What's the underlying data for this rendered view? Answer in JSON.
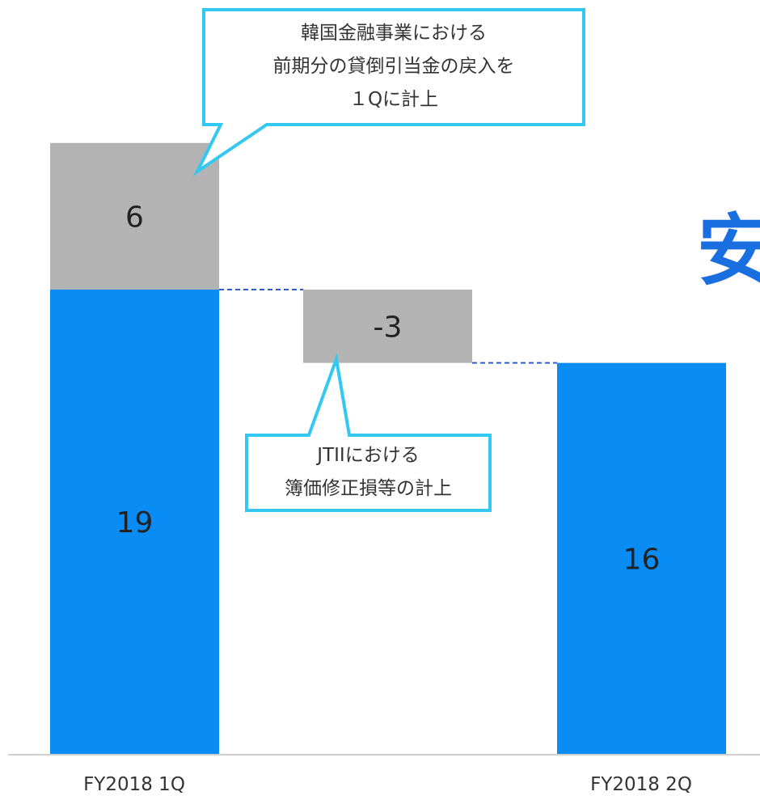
{
  "chart_data": {
    "type": "bar",
    "subtype": "waterfall",
    "categories": [
      "FY2018 1Q",
      "",
      "FY2018 2Q"
    ],
    "ylim": [
      0,
      26
    ],
    "grid": false,
    "legend": "none",
    "colors": {
      "base": "#0a8cf5",
      "delta": "#b3b3b3",
      "callout": "#33c8f2",
      "connector": "#2b5fc7"
    },
    "segments": [
      {
        "category": "FY2018 1Q",
        "kind": "base",
        "from": 0,
        "to": 19,
        "label": "19"
      },
      {
        "category": "FY2018 1Q",
        "kind": "delta",
        "from": 19,
        "to": 25,
        "label": "6"
      },
      {
        "category": "",
        "kind": "delta",
        "from": 16,
        "to": 19,
        "label": "-3"
      },
      {
        "category": "FY2018 2Q",
        "kind": "base",
        "from": 0,
        "to": 16,
        "label": "16"
      }
    ],
    "annotations": [
      {
        "lines": [
          "韓国金融事業における",
          "前期分の貸倒引当金の戻入を",
          "１Qに計上"
        ]
      },
      {
        "lines": [
          "JTIIにおける",
          "簿価修正損等の計上"
        ]
      }
    ]
  },
  "side_text": "安"
}
